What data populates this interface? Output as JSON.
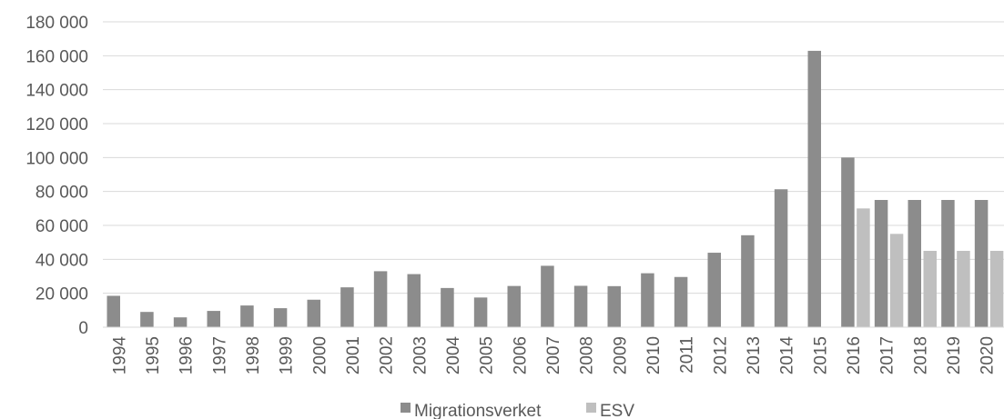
{
  "chart_data": {
    "type": "bar",
    "categories": [
      "1994",
      "1995",
      "1996",
      "1997",
      "1998",
      "1999",
      "2000",
      "2001",
      "2002",
      "2003",
      "2004",
      "2005",
      "2006",
      "2007",
      "2008",
      "2009",
      "2010",
      "2011",
      "2012",
      "2013",
      "2014",
      "2015",
      "2016",
      "2017",
      "2018",
      "2019",
      "2020"
    ],
    "series": [
      {
        "name": "Migrationsverket",
        "color": "#8c8c8c",
        "values": [
          18500,
          9000,
          5800,
          9600,
          12800,
          11200,
          16200,
          23500,
          33000,
          31300,
          23100,
          17500,
          24300,
          36200,
          24400,
          24200,
          31800,
          29600,
          43900,
          54200,
          81300,
          162900,
          100000,
          75000,
          75000,
          75000,
          75000
        ]
      },
      {
        "name": "ESV",
        "color": "#bfbfbf",
        "values": [
          null,
          null,
          null,
          null,
          null,
          null,
          null,
          null,
          null,
          null,
          null,
          null,
          null,
          null,
          null,
          null,
          null,
          null,
          null,
          null,
          null,
          null,
          70000,
          55000,
          45000,
          45000,
          45000
        ]
      }
    ],
    "y_ticks": [
      "0",
      "20 000",
      "40 000",
      "60 000",
      "80 000",
      "100 000",
      "120 000",
      "140 000",
      "160 000",
      "180 000"
    ],
    "ylim": [
      0,
      180000
    ],
    "grid": true,
    "legend_position": "bottom",
    "title": "",
    "xlabel": "",
    "ylabel": ""
  }
}
